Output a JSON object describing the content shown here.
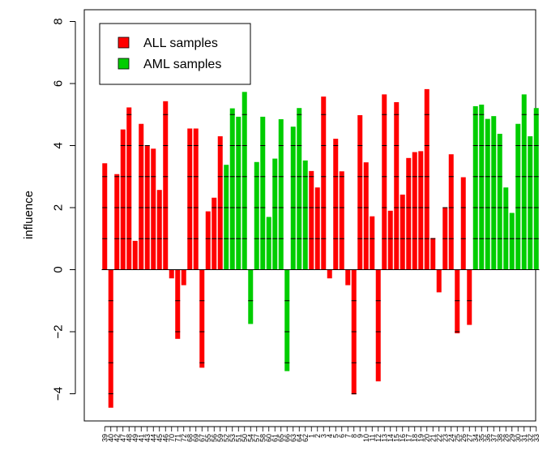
{
  "chart_data": {
    "type": "bar",
    "title": "",
    "xlabel": "",
    "ylabel": "influence",
    "ylim": [
      -5,
      8.2
    ],
    "yticks": [
      -4,
      -2,
      0,
      2,
      4,
      6,
      8
    ],
    "legend": {
      "placement": "top-left",
      "entries": [
        {
          "name": "ALL samples",
          "color": "#ff0000"
        },
        {
          "name": "AML samples",
          "color": "#00cd00"
        }
      ]
    },
    "colors": {
      "ALL": "#ff0000",
      "AML": "#00cd00"
    },
    "categories": [
      "39",
      "40",
      "42",
      "47",
      "48",
      "49",
      "41",
      "43",
      "44",
      "45",
      "46",
      "70",
      "71",
      "72",
      "68",
      "69",
      "67",
      "55",
      "56",
      "59",
      "52",
      "53",
      "51",
      "50",
      "54",
      "57",
      "58",
      "60",
      "61",
      "65",
      "66",
      "63",
      "64",
      "62",
      "1",
      "2",
      "3",
      "4",
      "5",
      "6",
      "7",
      "8",
      "9",
      "10",
      "11",
      "12",
      "13",
      "14",
      "15",
      "16",
      "17",
      "18",
      "19",
      "20",
      "21",
      "22",
      "23",
      "24",
      "25",
      "26",
      "27",
      "34",
      "35",
      "36",
      "37",
      "38",
      "28",
      "29",
      "30",
      "31",
      "32",
      "33"
    ],
    "groups": [
      "ALL",
      "ALL",
      "ALL",
      "ALL",
      "ALL",
      "ALL",
      "ALL",
      "ALL",
      "ALL",
      "ALL",
      "ALL",
      "ALL",
      "ALL",
      "ALL",
      "ALL",
      "ALL",
      "ALL",
      "ALL",
      "ALL",
      "ALL",
      "AML",
      "AML",
      "AML",
      "AML",
      "AML",
      "AML",
      "AML",
      "AML",
      "AML",
      "AML",
      "AML",
      "AML",
      "AML",
      "AML",
      "ALL",
      "ALL",
      "ALL",
      "ALL",
      "ALL",
      "ALL",
      "ALL",
      "ALL",
      "ALL",
      "ALL",
      "ALL",
      "ALL",
      "ALL",
      "ALL",
      "ALL",
      "ALL",
      "ALL",
      "ALL",
      "ALL",
      "ALL",
      "ALL",
      "ALL",
      "ALL",
      "ALL",
      "ALL",
      "ALL",
      "ALL",
      "AML",
      "AML",
      "AML",
      "AML",
      "AML",
      "AML",
      "AML",
      "AML",
      "AML",
      "AML",
      "AML"
    ],
    "values": [
      3.43,
      -4.45,
      3.08,
      4.52,
      5.23,
      0.93,
      4.7,
      4.01,
      3.9,
      2.57,
      5.43,
      -0.28,
      -2.23,
      -0.5,
      4.55,
      4.55,
      -3.16,
      1.88,
      2.32,
      4.3,
      3.38,
      5.2,
      4.93,
      5.73,
      -1.75,
      3.47,
      4.93,
      1.7,
      3.58,
      4.85,
      -3.27,
      4.61,
      5.21,
      3.52,
      3.18,
      2.65,
      5.58,
      -0.28,
      4.22,
      3.17,
      -0.5,
      -4.02,
      4.98,
      3.46,
      1.72,
      -3.6,
      5.65,
      1.9,
      5.4,
      2.42,
      3.6,
      3.79,
      3.82,
      5.82,
      1.02,
      -0.73,
      2.0,
      3.72,
      -2.05,
      2.98,
      -1.78,
      5.27,
      5.32,
      4.86,
      4.95,
      4.38,
      2.65,
      1.83,
      4.7,
      5.65,
      4.3,
      5.21
    ]
  }
}
